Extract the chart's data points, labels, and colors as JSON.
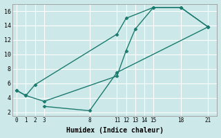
{
  "title": "",
  "xlabel": "Humidex (Indice chaleur)",
  "ylabel": "",
  "background_color": "#cce8e8",
  "grid_color": "#ffffff",
  "line_color": "#1a7a6e",
  "xlim": [
    -0.5,
    22
  ],
  "ylim": [
    1.5,
    17
  ],
  "xticks": [
    0,
    1,
    2,
    3,
    8,
    11,
    12,
    13,
    14,
    15,
    18,
    21
  ],
  "yticks": [
    2,
    4,
    6,
    8,
    10,
    12,
    14,
    16
  ],
  "lines": [
    {
      "x": [
        0,
        1,
        2,
        11,
        12,
        15,
        18,
        21
      ],
      "y": [
        5.0,
        4.3,
        5.8,
        12.8,
        15.0,
        16.5,
        16.5,
        13.8
      ]
    },
    {
      "x": [
        0,
        1,
        3,
        11,
        12,
        13,
        15,
        18,
        21
      ],
      "y": [
        5.0,
        4.3,
        3.5,
        7.0,
        10.5,
        13.5,
        16.5,
        16.5,
        13.8
      ]
    },
    {
      "x": [
        3,
        8,
        11,
        21
      ],
      "y": [
        2.8,
        2.2,
        7.5,
        13.8
      ]
    }
  ]
}
